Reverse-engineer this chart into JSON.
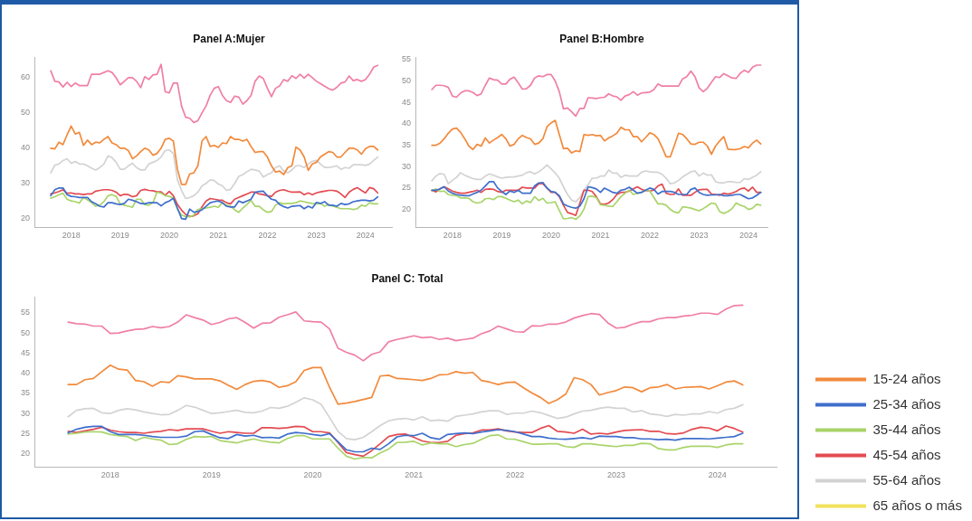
{
  "chart_data": [
    {
      "type": "line",
      "title": "Panel A:Mujer",
      "x": [
        "2017-08",
        "2017-09",
        "2017-10",
        "2017-11",
        "2017-12",
        "2018-01",
        "2018-02",
        "2018-03",
        "2018-04",
        "2018-05",
        "2018-06",
        "2018-07",
        "2018-08",
        "2018-09",
        "2018-10",
        "2018-11",
        "2018-12",
        "2019-01",
        "2019-02",
        "2019-03",
        "2019-04",
        "2019-05",
        "2019-06",
        "2019-07",
        "2019-08",
        "2019-09",
        "2019-10",
        "2019-11",
        "2019-12",
        "2020-01",
        "2020-02",
        "2020-03",
        "2020-04",
        "2020-05",
        "2020-06",
        "2020-07",
        "2020-08",
        "2020-09",
        "2020-10",
        "2020-11",
        "2020-12",
        "2021-01",
        "2021-02",
        "2021-03",
        "2021-04",
        "2021-05",
        "2021-06",
        "2021-07",
        "2021-08",
        "2021-09",
        "2021-10",
        "2021-11",
        "2021-12",
        "2022-01",
        "2022-02",
        "2022-03",
        "2022-04",
        "2022-05",
        "2022-06",
        "2022-07",
        "2022-08",
        "2022-09",
        "2022-10",
        "2022-11",
        "2022-12",
        "2023-01",
        "2023-02",
        "2023-03",
        "2023-04",
        "2023-05",
        "2023-06",
        "2023-07",
        "2023-08",
        "2023-09",
        "2023-10",
        "2023-11",
        "2023-12",
        "2024-01",
        "2024-02",
        "2024-03",
        "2024-04"
      ],
      "xlim": [
        "2017-04",
        "2024-07-15"
      ],
      "xticks": [
        "2018",
        "2019",
        "2020",
        "2021",
        "2022",
        "2023",
        "2024"
      ],
      "ylim": [
        17.6,
        65.9
      ],
      "yticks": [
        20,
        30,
        40,
        50,
        60
      ],
      "series": [
        {
          "color": "#f28a3c",
          "values": [
            40,
            39.8,
            41.7,
            41,
            43.8,
            46.3,
            44,
            44.5,
            40.8,
            42.3,
            41,
            41.7,
            41.5,
            42.5,
            43.3,
            41.5,
            41,
            40,
            40,
            39.3,
            37,
            37.8,
            39,
            40,
            39.5,
            38,
            38.5,
            40,
            42.5,
            42.8,
            42,
            34,
            29.7,
            29.7,
            32.7,
            33,
            35,
            42,
            43.3,
            40.5,
            40.8,
            40.2,
            41.5,
            41.3,
            43.3,
            42.5,
            42.5,
            42,
            42.5,
            40.5,
            38.8,
            39,
            39,
            37.5,
            35,
            33.2,
            33.5,
            32.5,
            34.5,
            35,
            40.3,
            39.5,
            37.5,
            33.7,
            35.5,
            36,
            37.5,
            38.3,
            39,
            38.8,
            37.5,
            37.5,
            38.8,
            40,
            40,
            39.5,
            38.3,
            39.8,
            40.5,
            40.5,
            39.5
          ]
        },
        {
          "color": "#3f6fcc",
          "values": [
            26.5,
            28.2,
            28.7,
            28.7,
            26.8,
            26.3,
            26.2,
            26,
            26,
            26,
            24.8,
            24.2,
            23.5,
            23.3,
            24.5,
            24.5,
            24.2,
            24,
            24.3,
            25.5,
            25.2,
            24.8,
            24.3,
            24.2,
            24.5,
            24.5,
            24.5,
            23.6,
            24.5,
            25,
            25.8,
            23,
            20,
            19.8,
            22.7,
            21.8,
            22,
            22.5,
            23.5,
            24.5,
            24.8,
            25,
            24.5,
            23.5,
            23.3,
            23.3,
            25,
            24.5,
            25,
            25.5,
            27.5,
            27.7,
            27.8,
            26.5,
            25.5,
            25.2,
            24,
            23.4,
            23,
            23.5,
            23.6,
            23.7,
            22.8,
            23.5,
            23,
            24.6,
            24.3,
            24.8,
            23.8,
            23.8,
            23.5,
            24.3,
            24,
            24.2,
            24.8,
            25,
            25.2,
            25.2,
            25,
            25.2,
            26.2
          ]
        },
        {
          "color": "#a9d46a",
          "values": [
            25.8,
            26.2,
            26.8,
            27.2,
            25.5,
            25,
            24.8,
            24.4,
            26,
            25.3,
            24.5,
            23.5,
            23.8,
            24.8,
            26.5,
            26.8,
            26.3,
            24.2,
            23.8,
            23.5,
            23.2,
            25.5,
            25.5,
            24,
            23.8,
            24.5,
            27.5,
            27.2,
            26.5,
            26.3,
            25.8,
            22.6,
            21,
            20.6,
            20.5,
            21,
            22.6,
            22.8,
            23,
            23.2,
            23.5,
            23.2,
            24.5,
            23.8,
            23.5,
            22.5,
            21.8,
            23,
            24,
            25.2,
            23.5,
            23.5,
            22.5,
            21.8,
            22,
            23.8,
            24.5,
            24.2,
            24.3,
            24.3,
            24.5,
            25,
            24.8,
            24.5,
            24.3,
            24.2,
            24.3,
            23.5,
            24,
            23.5,
            23.2,
            22.8,
            22.8,
            22.8,
            22.6,
            22.8,
            23.8,
            23.5,
            24.5,
            24.2,
            24.2
          ]
        },
        {
          "color": "#e34b51",
          "values": [
            27,
            27.3,
            27.7,
            28.2,
            27.2,
            27.3,
            27,
            27,
            26.8,
            27,
            27,
            27.8,
            28,
            28.2,
            28.2,
            28,
            27.5,
            26.5,
            26.9,
            26.8,
            26.2,
            26.5,
            28,
            28.3,
            28,
            27.9,
            27.6,
            27.6,
            26.6,
            27.7,
            26.5,
            24,
            22.4,
            21.2,
            20.6,
            20.8,
            21.4,
            23.3,
            25,
            25.7,
            25.5,
            25.3,
            25.2,
            24.5,
            24.2,
            25.5,
            26,
            26.5,
            27,
            27.5,
            27.5,
            27,
            26.8,
            26.5,
            26.3,
            27.5,
            28,
            28.2,
            27.8,
            27.5,
            27.5,
            27.6,
            26.8,
            27.3,
            26.8,
            27.3,
            27.6,
            27.8,
            28,
            28,
            27.8,
            27,
            26,
            27.5,
            28.3,
            28.8,
            28,
            27.3,
            28.8,
            28.5,
            27.3
          ]
        },
        {
          "color": "#d3d3d3",
          "values": [
            33,
            35.2,
            35.5,
            36.5,
            37,
            35.7,
            36.2,
            35.5,
            35.5,
            35,
            34.3,
            33.8,
            34.5,
            35.5,
            37.8,
            37.3,
            36,
            34,
            34,
            35,
            35.7,
            34.5,
            33.8,
            33.8,
            35.5,
            36,
            36.5,
            37.5,
            39.3,
            39.5,
            38.5,
            31,
            28,
            25.7,
            26,
            26.5,
            27.5,
            29.3,
            30,
            31,
            30.8,
            29.8,
            29.3,
            28,
            28.3,
            30,
            32,
            32.5,
            33.3,
            34,
            33.8,
            33.5,
            31.8,
            32.5,
            33,
            34.5,
            35,
            33.5,
            33,
            33.8,
            35,
            35,
            34.5,
            35.5,
            36.3,
            36.5,
            35.5,
            34.5,
            34.5,
            34.7,
            35,
            34,
            34.5,
            34.3,
            35.3,
            35.3,
            35.3,
            35.1,
            35.5,
            36.5,
            37.5
          ]
        },
        {
          "color": "#f07fa6",
          "values": [
            62,
            59,
            58.8,
            57.4,
            58.7,
            57.5,
            58.5,
            57.8,
            57.8,
            57.8,
            61,
            61,
            61,
            61.5,
            62,
            61.5,
            60,
            58,
            59,
            60,
            60,
            59,
            57.2,
            60.3,
            59.5,
            60.8,
            61,
            63.8,
            56,
            55.7,
            58.5,
            58.5,
            52,
            48.8,
            48.5,
            47.3,
            47.8,
            50,
            52,
            55,
            57,
            57.5,
            55,
            53.5,
            53,
            54.8,
            54.5,
            52.5,
            53.5,
            55,
            59,
            60.5,
            59.8,
            57,
            54.6,
            57,
            57.7,
            59.5,
            59,
            60.6,
            59.8,
            61,
            59.9,
            61,
            60,
            59,
            58.3,
            57.6,
            56.9,
            56.5,
            57.3,
            58.5,
            58.8,
            60.5,
            59.2,
            59.5,
            59,
            59.5,
            61,
            63,
            63.5
          ]
        }
      ]
    },
    {
      "type": "line",
      "title": "Panel B:Hombre",
      "x": [
        "2017-08",
        "2017-09",
        "2017-10",
        "2017-11",
        "2017-12",
        "2018-01",
        "2018-02",
        "2018-03",
        "2018-04",
        "2018-05",
        "2018-06",
        "2018-07",
        "2018-08",
        "2018-09",
        "2018-10",
        "2018-11",
        "2018-12",
        "2019-01",
        "2019-02",
        "2019-03",
        "2019-04",
        "2019-05",
        "2019-06",
        "2019-07",
        "2019-08",
        "2019-09",
        "2019-10",
        "2019-11",
        "2019-12",
        "2020-01",
        "2020-02",
        "2020-03",
        "2020-04",
        "2020-05",
        "2020-06",
        "2020-07",
        "2020-08",
        "2020-09",
        "2020-10",
        "2020-11",
        "2020-12",
        "2021-01",
        "2021-02",
        "2021-03",
        "2021-04",
        "2021-05",
        "2021-06",
        "2021-07",
        "2021-08",
        "2021-09",
        "2021-10",
        "2021-11",
        "2021-12",
        "2022-01",
        "2022-02",
        "2022-03",
        "2022-04",
        "2022-05",
        "2022-06",
        "2022-07",
        "2022-08",
        "2022-09",
        "2022-10",
        "2022-11",
        "2022-12",
        "2023-01",
        "2023-02",
        "2023-03",
        "2023-04",
        "2023-05",
        "2023-06",
        "2023-07",
        "2023-08",
        "2023-09",
        "2023-10",
        "2023-11",
        "2023-12",
        "2024-01",
        "2024-02",
        "2024-03",
        "2024-04"
      ],
      "xlim": [
        "2017-04",
        "2024-05-20"
      ],
      "xticks": [
        "2018",
        "2019",
        "2020",
        "2021",
        "2022",
        "2023",
        "2024"
      ],
      "ylim": [
        15.9,
        55.6
      ],
      "yticks": [
        20,
        25,
        30,
        35,
        40,
        45,
        50,
        55
      ],
      "series": [
        {
          "color": "#f28a3c",
          "values": [
            35,
            35,
            35.5,
            36.5,
            37.8,
            38.8,
            39,
            38,
            36.5,
            34.8,
            34,
            35.2,
            34.8,
            36.7,
            35.5,
            36.2,
            36.8,
            37.5,
            36.5,
            34.8,
            35.2,
            36.5,
            37.3,
            36.8,
            36.5,
            35.2,
            35.5,
            36.5,
            39.3,
            40.2,
            40.8,
            37.5,
            34.2,
            34.3,
            33.2,
            33.7,
            33.5,
            37.5,
            37.3,
            37.5,
            37.2,
            37.3,
            36,
            36.7,
            37.2,
            37.8,
            39.2,
            38.6,
            38.6,
            37,
            37,
            35.8,
            36.8,
            37.9,
            37.5,
            36.5,
            34.5,
            32.3,
            32.3,
            35,
            37.8,
            37.5,
            36.5,
            35.3,
            35.2,
            35.7,
            35.7,
            34.8,
            32.9,
            34.8,
            36,
            37,
            34.1,
            34,
            34,
            34.2,
            34.7,
            34.4,
            35.5,
            36.2,
            35.3
          ]
        },
        {
          "color": "#3f6fcc",
          "values": [
            24.5,
            24.5,
            24.8,
            25.3,
            24.3,
            23.8,
            23.5,
            23.3,
            23.2,
            23.2,
            23.6,
            24,
            24.5,
            25.5,
            26.5,
            26.5,
            25,
            24.2,
            23.5,
            24.3,
            24,
            24.5,
            23.8,
            23.8,
            23.8,
            25.5,
            26.2,
            26.3,
            25,
            24.2,
            24,
            23.2,
            21.3,
            20.8,
            20.5,
            20.3,
            20.8,
            22.5,
            25.3,
            25.1,
            24.8,
            24,
            25,
            24.5,
            24,
            23.8,
            24.5,
            24.7,
            25.2,
            24.5,
            23.8,
            24,
            24.5,
            25,
            24.7,
            23.6,
            24.2,
            24.2,
            24.2,
            24,
            23.5,
            23.5,
            23.5,
            24.7,
            25,
            24,
            23.5,
            23.3,
            23.4,
            23.4,
            23.5,
            23.2,
            23.2,
            23.3,
            23.5,
            23.5,
            23,
            22.5,
            22.7,
            23.3,
            24
          ]
        },
        {
          "color": "#a9d46a",
          "values": [
            24.3,
            24.8,
            24.2,
            24.3,
            23.5,
            23.3,
            23.2,
            22.7,
            22.7,
            22.6,
            21.8,
            21.5,
            21.7,
            22.5,
            22.6,
            22.3,
            23,
            23,
            22.6,
            22.2,
            21.8,
            22.2,
            21.3,
            22,
            21.6,
            23,
            22.1,
            22.6,
            21.5,
            21.6,
            21.8,
            19.8,
            17.8,
            17.9,
            18.1,
            17.7,
            18.5,
            20.1,
            23,
            23.1,
            22.8,
            21.1,
            21,
            20.8,
            20.7,
            21.8,
            23,
            23.8,
            24.5,
            23.5,
            23.8,
            24,
            24.5,
            24.3,
            22.8,
            21.3,
            21.3,
            21,
            20,
            19.4,
            19.2,
            20.6,
            20.5,
            20.3,
            20,
            19.7,
            20.2,
            20.8,
            21.5,
            21.3,
            19.5,
            19.1,
            19.5,
            20.2,
            21.5,
            21,
            20.7,
            20,
            20.3,
            21.2,
            21
          ]
        },
        {
          "color": "#e34b51",
          "values": [
            24.5,
            24.1,
            24.8,
            25.3,
            24.8,
            24.3,
            24,
            23.8,
            23.8,
            24,
            24.2,
            24.5,
            24,
            24.7,
            24.8,
            24.7,
            24.2,
            24,
            24.5,
            24.5,
            24.5,
            24.5,
            25.2,
            25,
            25,
            25,
            26,
            26,
            25,
            24,
            24,
            23,
            21,
            19.3,
            19,
            18.6,
            21.5,
            24.5,
            24.5,
            24.2,
            23,
            21.3,
            21.2,
            21.5,
            22.3,
            23.5,
            24,
            24,
            24.3,
            24.8,
            25.3,
            24.7,
            24.4,
            24.3,
            24.5,
            25.5,
            25.9,
            23.8,
            23.5,
            23.6,
            24.8,
            23.3,
            23.3,
            23.3,
            24,
            24.6,
            24.7,
            24.7,
            23.6,
            23.5,
            23.3,
            23.8,
            23.6,
            23.8,
            24.2,
            24.8,
            25,
            24.3,
            25.2,
            24,
            24
          ]
        },
        {
          "color": "#d3d3d3",
          "values": [
            26.7,
            27.8,
            28.4,
            28.2,
            26,
            26.8,
            27.5,
            28.6,
            28,
            27.6,
            27.2,
            27,
            27,
            27.8,
            28.3,
            28,
            27.6,
            27.3,
            27.5,
            27.6,
            27.6,
            27.8,
            28,
            28.6,
            28.8,
            28.3,
            28.8,
            29.5,
            30.4,
            29.5,
            28.5,
            27.3,
            25.3,
            23.5,
            22.2,
            21.8,
            22.8,
            24.5,
            25.8,
            27.3,
            27.3,
            27.8,
            27.8,
            29.2,
            28.5,
            28.5,
            27.5,
            28,
            27.8,
            27.8,
            27.8,
            28.7,
            29,
            28.8,
            28.7,
            28.7,
            28.2,
            27.3,
            26,
            26.2,
            26.8,
            27.6,
            28.2,
            28.8,
            29,
            27.8,
            28.5,
            28,
            28.1,
            26.5,
            26.2,
            26.2,
            26.5,
            26.5,
            26.3,
            26.3,
            27.2,
            27,
            27.5,
            28,
            28.8
          ]
        },
        {
          "color": "#f07fa6",
          "values": [
            48,
            49,
            49,
            48.9,
            48.5,
            46.5,
            46.2,
            47.2,
            47.7,
            47.7,
            47.3,
            46.6,
            47,
            49,
            50.7,
            50.3,
            50.2,
            49.3,
            49.3,
            50.4,
            50.9,
            49.6,
            48.1,
            48.2,
            49,
            50.7,
            51.2,
            51,
            51.5,
            51.5,
            50,
            47.5,
            43.5,
            43.7,
            42.8,
            41.8,
            43.6,
            43.6,
            46.1,
            46,
            45.9,
            46.1,
            46.2,
            47,
            46.5,
            46.3,
            45.5,
            46.5,
            46.8,
            47.5,
            46.7,
            47.2,
            47.3,
            47.4,
            48,
            49.3,
            48.8,
            48.8,
            48.8,
            48.8,
            48.8,
            50.5,
            51,
            52.3,
            51,
            48.4,
            47.5,
            48.3,
            49.7,
            51,
            50.8,
            51.7,
            51.2,
            50.7,
            50.6,
            51.8,
            52.5,
            52,
            53.2,
            53.7,
            53.7
          ]
        }
      ]
    },
    {
      "type": "line",
      "title": "Panel C: Total",
      "x": [
        "2017-08",
        "2017-09",
        "2017-10",
        "2017-11",
        "2017-12",
        "2018-01",
        "2018-02",
        "2018-03",
        "2018-04",
        "2018-05",
        "2018-06",
        "2018-07",
        "2018-08",
        "2018-09",
        "2018-10",
        "2018-11",
        "2018-12",
        "2019-01",
        "2019-02",
        "2019-03",
        "2019-04",
        "2019-05",
        "2019-06",
        "2019-07",
        "2019-08",
        "2019-09",
        "2019-10",
        "2019-11",
        "2019-12",
        "2020-01",
        "2020-02",
        "2020-03",
        "2020-04",
        "2020-05",
        "2020-06",
        "2020-07",
        "2020-08",
        "2020-09",
        "2020-10",
        "2020-11",
        "2020-12",
        "2021-01",
        "2021-02",
        "2021-03",
        "2021-04",
        "2021-05",
        "2021-06",
        "2021-07",
        "2021-08",
        "2021-09",
        "2021-10",
        "2021-11",
        "2021-12",
        "2022-01",
        "2022-02",
        "2022-03",
        "2022-04",
        "2022-05",
        "2022-06",
        "2022-07",
        "2022-08",
        "2022-09",
        "2022-10",
        "2022-11",
        "2022-12",
        "2023-01",
        "2023-02",
        "2023-03",
        "2023-04",
        "2023-05",
        "2023-06",
        "2023-07",
        "2023-08",
        "2023-09",
        "2023-10",
        "2023-11",
        "2023-12",
        "2024-01",
        "2024-02",
        "2024-03",
        "2024-04"
      ],
      "xlim": [
        "2017-04",
        "2024-08"
      ],
      "xticks": [
        "2018",
        "2019",
        "2020",
        "2021",
        "2022",
        "2023",
        "2024"
      ],
      "ylim": [
        16.8,
        59
      ],
      "yticks": [
        20,
        25,
        30,
        35,
        40,
        45,
        50,
        55
      ],
      "legend": "right",
      "series": [
        {
          "name": "15-24 años",
          "color": "#f28a3c",
          "values": [
            37.2,
            37.2,
            38.4,
            38.7,
            40.4,
            42,
            41,
            40.8,
            38.2,
            37.9,
            36.8,
            37.9,
            37.7,
            39.4,
            39.1,
            38.6,
            38.6,
            38.6,
            38.1,
            37,
            36,
            37.2,
            38,
            38.2,
            37.8,
            36.5,
            36.9,
            37.9,
            40.7,
            41.4,
            41.4,
            36.5,
            32.3,
            32.6,
            33,
            33.5,
            34,
            39.3,
            39.5,
            38.7,
            38.6,
            38.4,
            38.2,
            38.7,
            39.6,
            39.7,
            40.4,
            40,
            40.2,
            38.2,
            37.8,
            37.2,
            37.7,
            37.8,
            36.4,
            35.1,
            34,
            32.5,
            33.4,
            34.8,
            38.9,
            38.4,
            37.2,
            34.6,
            35.2,
            35.7,
            36.6,
            36.4,
            35.4,
            36.4,
            36.6,
            37.2,
            36.1,
            36.5,
            36.6,
            36.7,
            36.1,
            36.9,
            37.8,
            38.1,
            37.1
          ]
        },
        {
          "name": "25-34 años",
          "color": "#3f6fcc",
          "values": [
            25.2,
            26.1,
            26.6,
            26.8,
            26.8,
            25.5,
            24.8,
            24.8,
            24.8,
            24.6,
            24.3,
            24.1,
            24.1,
            24.1,
            24.4,
            25.5,
            25.7,
            24.8,
            24,
            23.8,
            24.8,
            24.4,
            24.6,
            24,
            24.1,
            23.9,
            24.9,
            25.3,
            25.1,
            24.8,
            24.5,
            25,
            23,
            21,
            20.5,
            20.5,
            21.4,
            21.1,
            22.5,
            24.2,
            24.6,
            24.5,
            25.1,
            24,
            23.6,
            24.8,
            25,
            25.2,
            25,
            25.4,
            25.7,
            26,
            25.8,
            25.5,
            24.9,
            24.3,
            24.3,
            23.9,
            23.7,
            23.6,
            23.8,
            24,
            23.7,
            24.4,
            24.3,
            24.3,
            24,
            24,
            23.7,
            23.7,
            23.5,
            23.6,
            23.4,
            23.8,
            23.8,
            23.8,
            23.7,
            23.9,
            24.1,
            24.3,
            25.1
          ]
        },
        {
          "name": "35-44 años",
          "color": "#a9d46a",
          "values": [
            24.9,
            25.1,
            25.4,
            25.5,
            25.4,
            24.8,
            24.5,
            24.3,
            23.3,
            24.1,
            23.7,
            23.4,
            22.3,
            22.5,
            23.6,
            24.3,
            24.2,
            24.3,
            23.3,
            23,
            22.7,
            23.3,
            23.7,
            23.2,
            22.9,
            22.7,
            23.8,
            24.5,
            24.5,
            23.7,
            23.7,
            23.7,
            21.4,
            19.4,
            18.7,
            19.1,
            19,
            20.2,
            21.2,
            22.8,
            22.9,
            23.1,
            22.2,
            22.7,
            22.5,
            22.5,
            21.8,
            22.3,
            22.6,
            23.6,
            24.5,
            24.7,
            23.7,
            23.6,
            23,
            22.4,
            22.4,
            22.5,
            22.5,
            21.8,
            21.6,
            22.5,
            22.5,
            22.2,
            22,
            21.8,
            22.1,
            22.1,
            22.6,
            22.5,
            21.3,
            21,
            21,
            21.6,
            21.9,
            21.9,
            21.9,
            21.6,
            22.2,
            22.5,
            22.5
          ]
        },
        {
          "name": "45-54 años",
          "color": "#e34b51",
          "values": [
            25.6,
            25.3,
            25.7,
            26.1,
            26.6,
            25.9,
            25.5,
            25.3,
            25.3,
            25.1,
            25.4,
            25.6,
            26,
            25.8,
            26.2,
            26.2,
            26.2,
            25.6,
            25.1,
            25.5,
            25.3,
            25.1,
            25.1,
            26.5,
            26.5,
            26.3,
            26.5,
            26.8,
            26.7,
            25.5,
            25.5,
            25.2,
            22.8,
            20.3,
            19.8,
            19.4,
            20.8,
            22.5,
            24.3,
            24.8,
            24.9,
            24.1,
            23.2,
            22.8,
            22.8,
            23.1,
            24.6,
            25,
            25.2,
            25.9,
            25.9,
            26.2,
            25.7,
            25.4,
            25.3,
            25.3,
            26.3,
            27,
            25.6,
            25.4,
            25.1,
            26.1,
            24.9,
            25.1,
            24.9,
            25.4,
            25.8,
            25.9,
            26,
            25.6,
            25.6,
            25,
            24.9,
            25.2,
            26.1,
            26.6,
            26.4,
            25.7,
            26.9,
            26.3,
            25.4
          ]
        },
        {
          "name": "55-64 años",
          "color": "#d3d3d3",
          "values": [
            29.2,
            30.8,
            31.2,
            31.3,
            30.2,
            30,
            30.8,
            31.2,
            30.9,
            30.4,
            30,
            29.7,
            29.8,
            30.8,
            32,
            31.6,
            30.8,
            30,
            30.2,
            30.5,
            30.8,
            30.3,
            30.2,
            30.6,
            31.5,
            31.3,
            31.8,
            32.8,
            33.9,
            33.4,
            32.3,
            29,
            25.6,
            23.8,
            23.5,
            24.1,
            25.5,
            27,
            28.2,
            28.6,
            28.8,
            28.4,
            29.2,
            28.2,
            28.4,
            28.1,
            29.3,
            29.6,
            29.9,
            30.4,
            30.7,
            30.7,
            29.8,
            30.1,
            30.1,
            30.6,
            30.2,
            29.5,
            28.8,
            29.1,
            29.9,
            30.6,
            30.8,
            31.3,
            31.6,
            31.3,
            31.3,
            30.4,
            30.7,
            29.9,
            29.7,
            29.3,
            29.8,
            29.6,
            29.9,
            29.9,
            30.5,
            30.1,
            31,
            31.3,
            32.2
          ]
        },
        {
          "name": "65 años o más",
          "color": "#f2e15b",
          "values": [
            null,
            null,
            null,
            null,
            null,
            null,
            null,
            null,
            null,
            null,
            null,
            null,
            null,
            null,
            null,
            null,
            null,
            null,
            null,
            null,
            null,
            null,
            null,
            null,
            null,
            null,
            null,
            null,
            null,
            null,
            null,
            null,
            null,
            null,
            null,
            null,
            null,
            null,
            null,
            null,
            null,
            null,
            null,
            null,
            null,
            null,
            null,
            null,
            null,
            null,
            null,
            null,
            null,
            null,
            null,
            null,
            null,
            null,
            null,
            null,
            null,
            null,
            null,
            null,
            null,
            null,
            null,
            null,
            null,
            null,
            null,
            null,
            null,
            null,
            null,
            null,
            null,
            null,
            null,
            null,
            null
          ]
        },
        {
          "color": "#f07fa6",
          "values": [
            52.7,
            52.3,
            52.2,
            51.7,
            51.7,
            49.9,
            50,
            50.5,
            50.9,
            51,
            51.6,
            51.3,
            51.6,
            52.7,
            54.5,
            53.8,
            53.2,
            52.1,
            52.6,
            53.5,
            53.8,
            52.6,
            51.2,
            52.4,
            52.5,
            53.9,
            54.5,
            55.2,
            53,
            52.8,
            52.7,
            51,
            46.2,
            45.2,
            44.5,
            43.1,
            44.7,
            45.3,
            47.8,
            48.4,
            48.8,
            49.3,
            48.8,
            49,
            48.4,
            48.7,
            48.1,
            48.4,
            48.7,
            49.8,
            50.5,
            51.7,
            51,
            50.3,
            50.2,
            51.8,
            51.7,
            52.2,
            52.2,
            52.7,
            53.7,
            54.3,
            54.8,
            54.6,
            52.5,
            51.2,
            51.4,
            52.2,
            52.8,
            52.8,
            53.5,
            53.8,
            53.8,
            54.2,
            54.4,
            54.9,
            54.9,
            54.6,
            55.9,
            56.8,
            56.9
          ]
        }
      ]
    }
  ]
}
